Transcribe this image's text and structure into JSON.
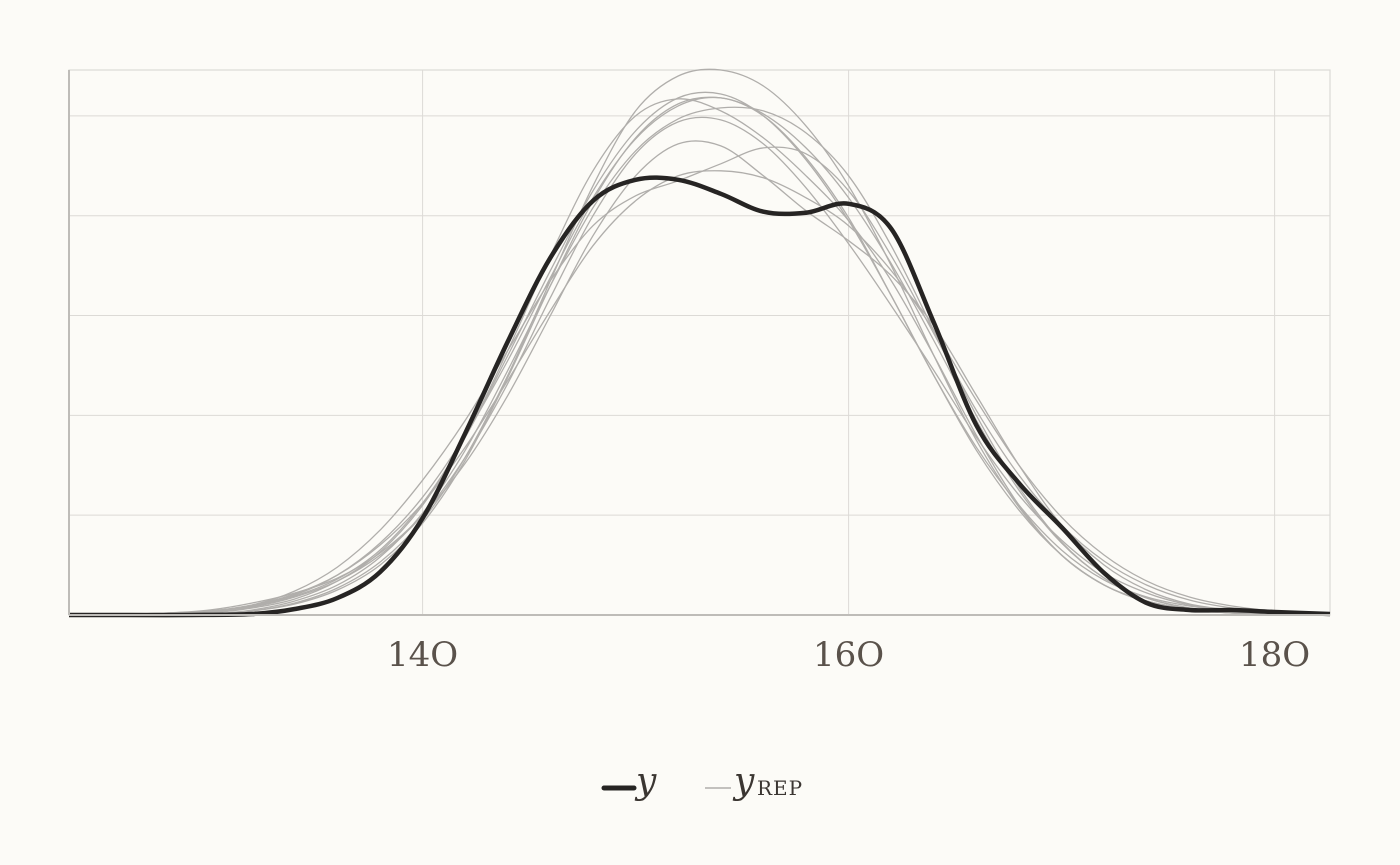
{
  "chart_data": {
    "type": "line",
    "title": "",
    "xlabel": "",
    "ylabel": "",
    "xlim": [
      123.4,
      182.6
    ],
    "ylim": [
      0,
      0.0546
    ],
    "x_ticks": [
      140,
      160,
      180
    ],
    "x_tick_labels": [
      "14O",
      "16O",
      "18O"
    ],
    "y_gridlines": [
      0.01,
      0.02,
      0.03,
      0.04,
      0.05
    ],
    "grid": true,
    "legend_position": "bottom-center",
    "legend": [
      {
        "label": "y",
        "sub": "",
        "style": "thick-dark"
      },
      {
        "label": "y",
        "sub": "REP",
        "style": "thin-gray"
      }
    ],
    "colors": {
      "observed": "#262423",
      "replicates": "#b0aeab",
      "grid": "#dcdad6",
      "axis": "#bebcb8"
    },
    "observed": {
      "name": "y",
      "x": [
        123.4,
        126,
        129,
        132,
        134,
        136,
        138,
        140,
        142,
        144,
        146,
        148,
        150,
        152,
        154,
        156,
        158,
        160,
        162,
        164,
        166,
        168,
        170,
        172,
        174,
        176,
        178,
        180,
        182.6
      ],
      "y": [
        0,
        0,
        0,
        0.0001,
        0.0006,
        0.0017,
        0.0043,
        0.0097,
        0.0182,
        0.0274,
        0.0358,
        0.0415,
        0.0436,
        0.0436,
        0.0422,
        0.0404,
        0.0403,
        0.0412,
        0.0387,
        0.0293,
        0.019,
        0.0132,
        0.0088,
        0.0042,
        0.0012,
        0.0005,
        0.0005,
        0.0003,
        0.0001
      ]
    },
    "replicates": [
      {
        "name": "y_rep 1",
        "x": [
          123.4,
          126,
          128,
          130,
          132,
          134,
          136,
          138,
          140,
          142,
          144,
          146,
          148,
          150,
          152,
          154,
          156,
          158,
          160,
          162,
          164,
          166,
          168,
          170,
          172,
          174,
          176,
          178,
          180,
          182.6
        ],
        "y": [
          0.0001,
          0.0001,
          0.0001,
          0.0003,
          0.0009,
          0.002,
          0.004,
          0.0072,
          0.0118,
          0.018,
          0.0255,
          0.0338,
          0.0418,
          0.0477,
          0.051,
          0.0518,
          0.05,
          0.0458,
          0.0398,
          0.032,
          0.024,
          0.0168,
          0.011,
          0.0065,
          0.0035,
          0.0018,
          0.0009,
          0.0004,
          0.0002,
          0.0001
        ]
      },
      {
        "name": "y_rep 2",
        "x": [
          123.4,
          126,
          128,
          130,
          132,
          134,
          136,
          138,
          140,
          142,
          144,
          146,
          148,
          150,
          152,
          154,
          156,
          158,
          160,
          162,
          164,
          166,
          168,
          170,
          172,
          174,
          176,
          178,
          180,
          182.6
        ],
        "y": [
          0,
          0,
          0.0001,
          0.0002,
          0.0007,
          0.0016,
          0.0034,
          0.0063,
          0.011,
          0.0178,
          0.0265,
          0.036,
          0.0445,
          0.05,
          0.0517,
          0.0505,
          0.0478,
          0.044,
          0.0395,
          0.0335,
          0.026,
          0.018,
          0.011,
          0.006,
          0.003,
          0.0014,
          0.0006,
          0.0002,
          0.0001,
          0
        ]
      },
      {
        "name": "y_rep 3",
        "x": [
          123.4,
          126,
          128,
          130,
          132,
          134,
          136,
          138,
          140,
          142,
          144,
          146,
          148,
          150,
          152,
          154,
          156,
          158,
          160,
          162,
          164,
          166,
          168,
          170,
          172,
          174,
          176,
          178,
          180,
          182.6
        ],
        "y": [
          0,
          0,
          0,
          0.0001,
          0.0005,
          0.0014,
          0.003,
          0.0058,
          0.0102,
          0.0165,
          0.0245,
          0.033,
          0.0408,
          0.0465,
          0.0497,
          0.0508,
          0.0505,
          0.0483,
          0.044,
          0.037,
          0.0285,
          0.02,
          0.0128,
          0.0073,
          0.0037,
          0.0017,
          0.0007,
          0.0002,
          0.0001,
          0
        ]
      },
      {
        "name": "y_rep 4",
        "x": [
          123.4,
          126,
          128,
          130,
          132,
          134,
          136,
          138,
          140,
          142,
          144,
          146,
          148,
          150,
          152,
          154,
          156,
          158,
          160,
          162,
          164,
          166,
          168,
          170,
          172,
          174,
          176,
          178,
          180,
          182.6
        ],
        "y": [
          0,
          0.0001,
          0.0002,
          0.0005,
          0.0012,
          0.0022,
          0.0037,
          0.0062,
          0.01,
          0.0152,
          0.022,
          0.03,
          0.038,
          0.044,
          0.0472,
          0.047,
          0.044,
          0.0405,
          0.0375,
          0.034,
          0.029,
          0.022,
          0.015,
          0.009,
          0.005,
          0.0025,
          0.0011,
          0.0005,
          0.0002,
          0.0001
        ]
      },
      {
        "name": "y_rep 5",
        "x": [
          123.4,
          126,
          128,
          130,
          132,
          134,
          136,
          138,
          140,
          142,
          144,
          146,
          148,
          150,
          152,
          154,
          156,
          158,
          160,
          162,
          164,
          166,
          168,
          170,
          172,
          174,
          176,
          178,
          180,
          182.6
        ],
        "y": [
          0,
          0,
          0.0001,
          0.0003,
          0.0009,
          0.0019,
          0.0036,
          0.0065,
          0.0112,
          0.0178,
          0.026,
          0.0345,
          0.0425,
          0.0485,
          0.0518,
          0.0522,
          0.05,
          0.0456,
          0.0395,
          0.032,
          0.024,
          0.0165,
          0.0105,
          0.006,
          0.003,
          0.0014,
          0.0006,
          0.0002,
          0.0001,
          0
        ]
      },
      {
        "name": "y_rep 6",
        "x": [
          123.4,
          126,
          128,
          130,
          132,
          134,
          136,
          138,
          140,
          142,
          144,
          146,
          148,
          150,
          152,
          154,
          156,
          158,
          160,
          162,
          164,
          166,
          168,
          170,
          172,
          174,
          176,
          178,
          180,
          182.6
        ],
        "y": [
          0,
          0,
          0,
          0.0001,
          0.0004,
          0.0012,
          0.0027,
          0.0053,
          0.0095,
          0.0158,
          0.024,
          0.0335,
          0.043,
          0.0505,
          0.054,
          0.0546,
          0.053,
          0.049,
          0.043,
          0.035,
          0.026,
          0.0175,
          0.0108,
          0.006,
          0.003,
          0.0013,
          0.0005,
          0.0002,
          0.0001,
          0
        ]
      },
      {
        "name": "y_rep 7",
        "x": [
          123.4,
          126,
          128,
          130,
          132,
          134,
          136,
          138,
          140,
          142,
          144,
          146,
          148,
          150,
          152,
          154,
          156,
          158,
          160,
          162,
          164,
          166,
          168,
          170,
          172,
          174,
          176,
          178,
          180,
          182.6
        ],
        "y": [
          0.0001,
          0.0001,
          0.0002,
          0.0004,
          0.001,
          0.0024,
          0.0048,
          0.0085,
          0.0135,
          0.0195,
          0.0265,
          0.0335,
          0.039,
          0.042,
          0.0435,
          0.0452,
          0.0468,
          0.0462,
          0.0425,
          0.036,
          0.0282,
          0.0205,
          0.014,
          0.009,
          0.0054,
          0.003,
          0.0015,
          0.0007,
          0.0003,
          0.0002
        ]
      },
      {
        "name": "y_rep 8",
        "x": [
          123.4,
          126,
          128,
          130,
          132,
          134,
          136,
          138,
          140,
          142,
          144,
          146,
          148,
          150,
          152,
          154,
          156,
          158,
          160,
          162,
          164,
          166,
          168,
          170,
          172,
          174,
          176,
          178,
          180,
          182.6
        ],
        "y": [
          0,
          0,
          0.0001,
          0.0003,
          0.0008,
          0.0018,
          0.0034,
          0.006,
          0.01,
          0.0158,
          0.0232,
          0.0318,
          0.04,
          0.0462,
          0.0494,
          0.0496,
          0.0472,
          0.0428,
          0.0372,
          0.031,
          0.0245,
          0.0178,
          0.012,
          0.0075,
          0.0042,
          0.0022,
          0.001,
          0.0004,
          0.0002,
          0.0001
        ]
      },
      {
        "name": "y_rep 9",
        "x": [
          123.4,
          126,
          128,
          130,
          132,
          134,
          136,
          138,
          140,
          142,
          144,
          146,
          148,
          150,
          152,
          154,
          156,
          158,
          160,
          162,
          164,
          166,
          168,
          170,
          172,
          174,
          176,
          178,
          180,
          182.6
        ],
        "y": [
          0,
          0,
          0,
          0.0001,
          0.0004,
          0.0011,
          0.0025,
          0.005,
          0.0092,
          0.0155,
          0.0238,
          0.033,
          0.0415,
          0.0478,
          0.0512,
          0.0518,
          0.0502,
          0.0468,
          0.0418,
          0.0352,
          0.0275,
          0.0195,
          0.0125,
          0.0072,
          0.0037,
          0.0017,
          0.0007,
          0.0003,
          0.0001,
          0
        ]
      },
      {
        "name": "y_rep 10",
        "x": [
          123.4,
          126,
          128,
          130,
          132,
          134,
          136,
          138,
          140,
          142,
          144,
          146,
          148,
          150,
          152,
          154,
          156,
          158,
          160,
          162,
          164,
          166,
          168,
          170,
          172,
          174,
          176,
          178,
          180,
          182.6
        ],
        "y": [
          0.0001,
          0.0001,
          0.0002,
          0.0004,
          0.001,
          0.0021,
          0.004,
          0.007,
          0.0112,
          0.0168,
          0.0235,
          0.0305,
          0.037,
          0.0415,
          0.044,
          0.0445,
          0.0438,
          0.0418,
          0.039,
          0.0345,
          0.0285,
          0.0215,
          0.015,
          0.0098,
          0.006,
          0.0034,
          0.0018,
          0.0009,
          0.0004,
          0.0002
        ]
      }
    ]
  }
}
